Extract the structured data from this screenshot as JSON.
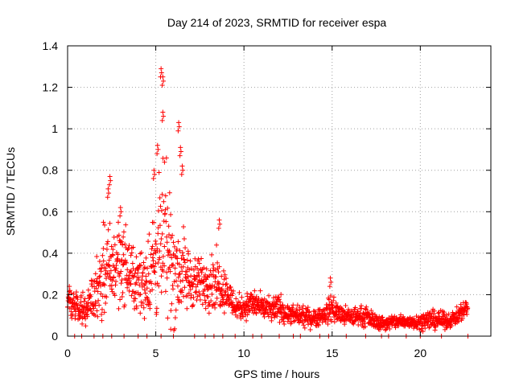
{
  "chart_data": {
    "type": "scatter",
    "title": "Day 214 of 2023, SRMTID for receiver espa",
    "xlabel": "GPS time / hours",
    "ylabel": "SRMTID / TECUs",
    "xlim": [
      0,
      24
    ],
    "ylim": [
      0,
      1.4
    ],
    "xticks": [
      0,
      5,
      10,
      15,
      20
    ],
    "yticks": [
      0,
      0.2,
      0.4,
      0.6,
      0.8,
      1.0,
      1.2,
      1.4
    ],
    "xtick_labels": [
      "0",
      "5",
      "10",
      "15",
      "20"
    ],
    "ytick_labels": [
      "0",
      "0.2",
      "0.4",
      "0.6",
      "0.8",
      "1",
      "1.2",
      "1.4"
    ],
    "grid": true,
    "marker": "+",
    "color": "#ff0000",
    "x_range_data": [
      0,
      22.7
    ],
    "envelope": {
      "x": [
        0,
        0.5,
        1.0,
        1.5,
        2.0,
        2.5,
        3.0,
        3.5,
        4.0,
        4.5,
        5.0,
        5.5,
        6.0,
        6.5,
        7.0,
        7.5,
        8.0,
        8.5,
        9.0,
        9.5,
        10.0,
        10.5,
        11.0,
        11.5,
        12.0,
        12.5,
        13.0,
        13.5,
        14.0,
        14.5,
        15.0,
        15.5,
        16.0,
        16.5,
        17.0,
        17.5,
        18.0,
        18.5,
        19.0,
        19.5,
        20.0,
        20.5,
        21.0,
        21.5,
        22.0,
        22.5,
        22.7
      ],
      "median": [
        0.17,
        0.14,
        0.13,
        0.2,
        0.3,
        0.32,
        0.38,
        0.3,
        0.25,
        0.28,
        0.38,
        0.45,
        0.33,
        0.3,
        0.27,
        0.25,
        0.27,
        0.26,
        0.22,
        0.14,
        0.14,
        0.16,
        0.14,
        0.12,
        0.14,
        0.1,
        0.1,
        0.09,
        0.09,
        0.1,
        0.14,
        0.1,
        0.09,
        0.1,
        0.09,
        0.07,
        0.06,
        0.07,
        0.07,
        0.07,
        0.07,
        0.08,
        0.08,
        0.07,
        0.09,
        0.13,
        0.14
      ],
      "spread": [
        0.06,
        0.06,
        0.06,
        0.1,
        0.18,
        0.2,
        0.18,
        0.14,
        0.12,
        0.18,
        0.25,
        0.35,
        0.25,
        0.18,
        0.12,
        0.1,
        0.12,
        0.12,
        0.08,
        0.06,
        0.05,
        0.06,
        0.05,
        0.05,
        0.06,
        0.04,
        0.04,
        0.04,
        0.04,
        0.04,
        0.06,
        0.04,
        0.04,
        0.04,
        0.04,
        0.03,
        0.03,
        0.03,
        0.03,
        0.03,
        0.03,
        0.04,
        0.04,
        0.03,
        0.03,
        0.04,
        0.03
      ]
    },
    "peaks": [
      {
        "x": 0.1,
        "y": 0.24
      },
      {
        "x": 2.3,
        "y": 0.71
      },
      {
        "x": 2.4,
        "y": 0.77
      },
      {
        "x": 3.0,
        "y": 0.62
      },
      {
        "x": 4.9,
        "y": 0.8
      },
      {
        "x": 5.1,
        "y": 0.92
      },
      {
        "x": 5.3,
        "y": 1.29
      },
      {
        "x": 5.4,
        "y": 1.25
      },
      {
        "x": 5.4,
        "y": 1.08
      },
      {
        "x": 6.3,
        "y": 1.03
      },
      {
        "x": 6.4,
        "y": 0.91
      },
      {
        "x": 6.5,
        "y": 0.82
      },
      {
        "x": 8.6,
        "y": 0.56
      },
      {
        "x": 14.9,
        "y": 0.28
      }
    ],
    "baseline_y": 0.0,
    "baseline_points_x": [
      0.4,
      0.8,
      1.5,
      2.0,
      2.5,
      3.2,
      4.0,
      4.5,
      5.3,
      6.0,
      7.2,
      7.8,
      8.3,
      8.8,
      9.5,
      10.5,
      11.0,
      12.0,
      12.8,
      13.2,
      14.3,
      14.8,
      15.8,
      16.9,
      17.8,
      18.2,
      19.2,
      20.0,
      21.2,
      22.7
    ]
  }
}
